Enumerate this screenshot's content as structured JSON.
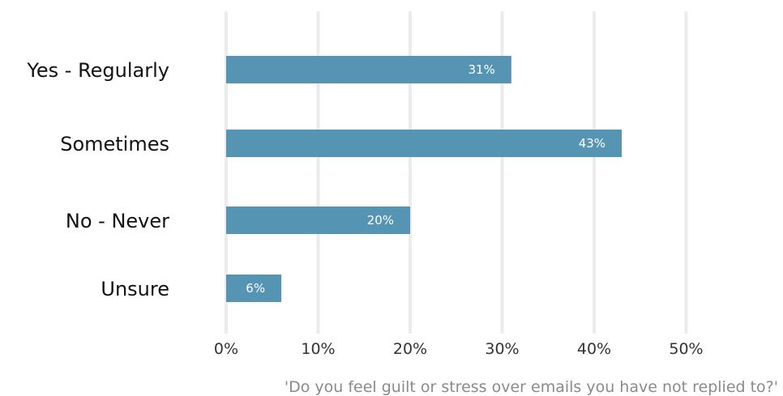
{
  "chart_data": {
    "type": "bar",
    "orientation": "horizontal",
    "categories": [
      "Yes - Regularly",
      "Sometimes",
      "No - Never",
      "Unsure"
    ],
    "values": [
      31,
      43,
      20,
      6
    ],
    "value_labels": [
      "31%",
      "43%",
      "20%",
      "6%"
    ],
    "xlim": [
      0,
      50
    ],
    "x_ticks": [
      0,
      10,
      20,
      30,
      40,
      50
    ],
    "x_tick_labels": [
      "0%",
      "10%",
      "20%",
      "30%",
      "40%",
      "50%"
    ],
    "grid": "vertical",
    "bar_color": "#5595b3",
    "grid_color": "#ebebeb",
    "caption": "'Do you feel guilt or stress over emails you have not replied to?'",
    "legend": "none"
  }
}
